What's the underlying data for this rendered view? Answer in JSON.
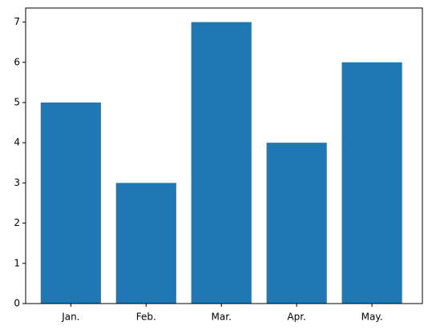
{
  "chart_data": {
    "type": "bar",
    "categories": [
      "Jan.",
      "Feb.",
      "Mar.",
      "Apr.",
      "May."
    ],
    "values": [
      5,
      3,
      7,
      4,
      6
    ],
    "color": "#1f77b4",
    "ylim": [
      0,
      7.35
    ],
    "yticks": [
      0,
      1,
      2,
      3,
      4,
      5,
      6,
      7
    ]
  }
}
